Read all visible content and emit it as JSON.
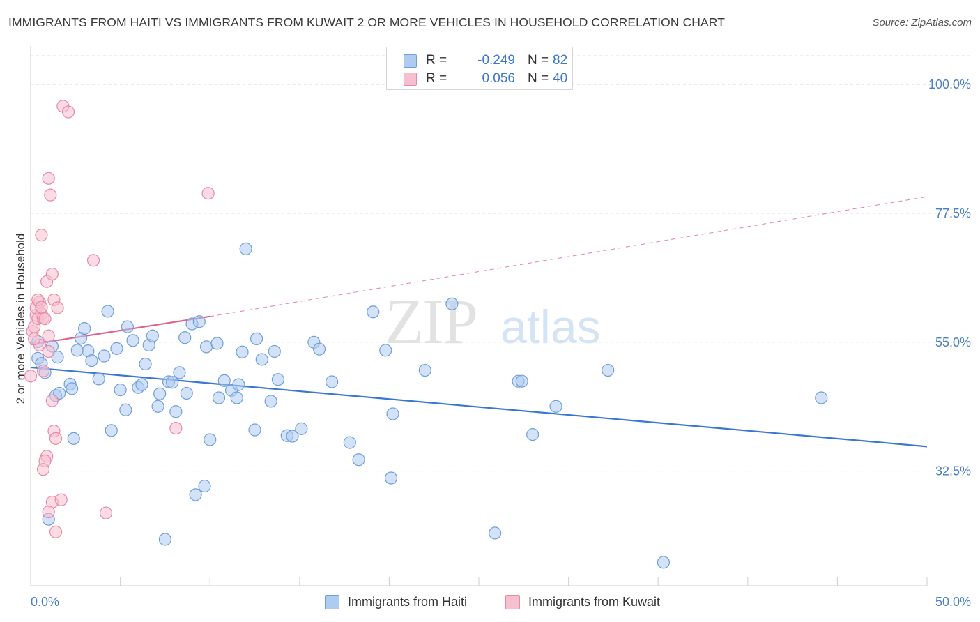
{
  "title": "IMMIGRANTS FROM HAITI VS IMMIGRANTS FROM KUWAIT 2 OR MORE VEHICLES IN HOUSEHOLD CORRELATION CHART",
  "source": "Source: ZipAtlas.com",
  "watermark": {
    "zip": "ZIP",
    "atlas": "atlas"
  },
  "legend": {
    "haiti": {
      "r_label": "R =",
      "r_value": "-0.249",
      "n_label": "N =",
      "n_value": "82"
    },
    "kuwait": {
      "r_label": "R =",
      "r_value": "0.056",
      "n_label": "N =",
      "n_value": "40"
    }
  },
  "colors": {
    "haiti_fill": "#aecbf0",
    "haiti_stroke": "#6e9fdc",
    "haiti_line": "#3a78d0",
    "kuwait_fill": "#f7bfd0",
    "kuwait_stroke": "#e889a8",
    "kuwait_line": "#e0628c",
    "grid": "#dedede",
    "tick_text": "#4a7fc1"
  },
  "chart_data": {
    "type": "scatter",
    "title": "IMMIGRANTS FROM HAITI VS IMMIGRANTS FROM KUWAIT 2 OR MORE VEHICLES IN HOUSEHOLD CORRELATION CHART",
    "xlabel": "",
    "ylabel": "2 or more Vehicles in Household",
    "xlim": [
      0,
      50
    ],
    "ylim": [
      12.5,
      105
    ],
    "x_tick_labels": [
      "0.0%",
      "50.0%"
    ],
    "y_ticks": [
      32.5,
      55.0,
      77.5,
      100.0
    ],
    "y_tick_labels": [
      "32.5%",
      "55.0%",
      "77.5%",
      "100.0%"
    ],
    "grid": true,
    "legend_position": "top-center",
    "series": [
      {
        "name": "Immigrants from Haiti",
        "r": -0.249,
        "n": 82,
        "trend": {
          "x": [
            0,
            50
          ],
          "y": [
            50.6,
            36.8
          ],
          "style": "solid"
        },
        "points": [
          {
            "x": 0.4,
            "y": 52.2
          },
          {
            "x": 0.6,
            "y": 51.3
          },
          {
            "x": 0.8,
            "y": 49.7
          },
          {
            "x": 1.2,
            "y": 54.3
          },
          {
            "x": 1.5,
            "y": 52.4
          },
          {
            "x": 1.4,
            "y": 45.7
          },
          {
            "x": 1.6,
            "y": 46.1
          },
          {
            "x": 2.2,
            "y": 47.7
          },
          {
            "x": 2.4,
            "y": 38.2
          },
          {
            "x": 2.8,
            "y": 55.7
          },
          {
            "x": 3.0,
            "y": 57.4
          },
          {
            "x": 2.6,
            "y": 53.6
          },
          {
            "x": 3.2,
            "y": 53.5
          },
          {
            "x": 3.4,
            "y": 51.8
          },
          {
            "x": 3.8,
            "y": 48.6
          },
          {
            "x": 4.1,
            "y": 52.6
          },
          {
            "x": 4.3,
            "y": 60.4
          },
          {
            "x": 4.5,
            "y": 39.6
          },
          {
            "x": 4.8,
            "y": 53.9
          },
          {
            "x": 5.0,
            "y": 46.7
          },
          {
            "x": 5.3,
            "y": 43.2
          },
          {
            "x": 5.4,
            "y": 57.7
          },
          {
            "x": 5.7,
            "y": 55.3
          },
          {
            "x": 6.0,
            "y": 47.1
          },
          {
            "x": 6.2,
            "y": 47.6
          },
          {
            "x": 6.4,
            "y": 51.2
          },
          {
            "x": 6.6,
            "y": 54.5
          },
          {
            "x": 6.8,
            "y": 56.1
          },
          {
            "x": 7.1,
            "y": 43.8
          },
          {
            "x": 7.2,
            "y": 46.0
          },
          {
            "x": 7.7,
            "y": 48.1
          },
          {
            "x": 7.9,
            "y": 48.0
          },
          {
            "x": 8.1,
            "y": 42.9
          },
          {
            "x": 8.3,
            "y": 49.7
          },
          {
            "x": 8.6,
            "y": 55.8
          },
          {
            "x": 8.7,
            "y": 46.1
          },
          {
            "x": 9.0,
            "y": 58.2
          },
          {
            "x": 9.4,
            "y": 58.6
          },
          {
            "x": 9.2,
            "y": 28.4
          },
          {
            "x": 9.7,
            "y": 29.9
          },
          {
            "x": 9.8,
            "y": 54.2
          },
          {
            "x": 10.0,
            "y": 38.0
          },
          {
            "x": 10.4,
            "y": 54.8
          },
          {
            "x": 10.5,
            "y": 45.3
          },
          {
            "x": 10.8,
            "y": 48.3
          },
          {
            "x": 11.2,
            "y": 46.6
          },
          {
            "x": 11.5,
            "y": 45.3
          },
          {
            "x": 11.6,
            "y": 47.6
          },
          {
            "x": 11.8,
            "y": 53.3
          },
          {
            "x": 12.0,
            "y": 71.3
          },
          {
            "x": 12.5,
            "y": 39.7
          },
          {
            "x": 12.6,
            "y": 55.6
          },
          {
            "x": 12.9,
            "y": 52.0
          },
          {
            "x": 13.4,
            "y": 44.7
          },
          {
            "x": 13.6,
            "y": 53.4
          },
          {
            "x": 13.8,
            "y": 48.5
          },
          {
            "x": 14.3,
            "y": 38.7
          },
          {
            "x": 14.6,
            "y": 38.6
          },
          {
            "x": 15.1,
            "y": 39.9
          },
          {
            "x": 15.8,
            "y": 55.0
          },
          {
            "x": 16.1,
            "y": 53.8
          },
          {
            "x": 16.8,
            "y": 48.1
          },
          {
            "x": 17.8,
            "y": 37.5
          },
          {
            "x": 18.3,
            "y": 34.5
          },
          {
            "x": 19.1,
            "y": 60.3
          },
          {
            "x": 19.8,
            "y": 53.6
          },
          {
            "x": 20.1,
            "y": 31.3
          },
          {
            "x": 20.2,
            "y": 42.5
          },
          {
            "x": 22.0,
            "y": 50.1
          },
          {
            "x": 23.5,
            "y": 61.7
          },
          {
            "x": 25.9,
            "y": 21.7
          },
          {
            "x": 27.2,
            "y": 48.2
          },
          {
            "x": 27.4,
            "y": 48.2
          },
          {
            "x": 28.0,
            "y": 38.9
          },
          {
            "x": 29.3,
            "y": 43.8
          },
          {
            "x": 32.2,
            "y": 50.1
          },
          {
            "x": 35.3,
            "y": 16.6
          },
          {
            "x": 44.1,
            "y": 45.3
          },
          {
            "x": 0.4,
            "y": 55.1
          },
          {
            "x": 2.3,
            "y": 46.9
          },
          {
            "x": 7.5,
            "y": 20.6
          },
          {
            "x": 1.0,
            "y": 24.1
          }
        ]
      },
      {
        "name": "Immigrants from Kuwait",
        "r": 0.056,
        "n": 40,
        "trend": {
          "x": [
            0,
            10
          ],
          "y": [
            54.6,
            59.5
          ],
          "style": "solid",
          "extension": {
            "x": [
              10,
              50
            ],
            "y": [
              59.5,
              80.4
            ],
            "style": "dashed"
          }
        },
        "points": [
          {
            "x": 0.0,
            "y": 49.1
          },
          {
            "x": 0.1,
            "y": 56.9
          },
          {
            "x": 0.2,
            "y": 57.7
          },
          {
            "x": 0.3,
            "y": 59.7
          },
          {
            "x": 0.4,
            "y": 59.1
          },
          {
            "x": 0.3,
            "y": 61.0
          },
          {
            "x": 0.5,
            "y": 62.0
          },
          {
            "x": 0.4,
            "y": 62.4
          },
          {
            "x": 0.6,
            "y": 60.0
          },
          {
            "x": 0.7,
            "y": 59.2
          },
          {
            "x": 0.8,
            "y": 59.1
          },
          {
            "x": 0.6,
            "y": 61.1
          },
          {
            "x": 0.5,
            "y": 54.5
          },
          {
            "x": 0.7,
            "y": 50.0
          },
          {
            "x": 1.0,
            "y": 56.1
          },
          {
            "x": 1.0,
            "y": 53.4
          },
          {
            "x": 0.9,
            "y": 65.6
          },
          {
            "x": 1.2,
            "y": 66.9
          },
          {
            "x": 1.3,
            "y": 62.4
          },
          {
            "x": 1.5,
            "y": 61.0
          },
          {
            "x": 0.6,
            "y": 73.7
          },
          {
            "x": 1.0,
            "y": 83.6
          },
          {
            "x": 1.1,
            "y": 80.7
          },
          {
            "x": 1.2,
            "y": 44.8
          },
          {
            "x": 1.3,
            "y": 39.5
          },
          {
            "x": 1.4,
            "y": 38.2
          },
          {
            "x": 0.9,
            "y": 35.1
          },
          {
            "x": 0.8,
            "y": 34.3
          },
          {
            "x": 0.7,
            "y": 32.8
          },
          {
            "x": 1.2,
            "y": 27.1
          },
          {
            "x": 1.7,
            "y": 27.5
          },
          {
            "x": 1.0,
            "y": 25.4
          },
          {
            "x": 1.4,
            "y": 21.9
          },
          {
            "x": 1.8,
            "y": 96.2
          },
          {
            "x": 2.1,
            "y": 95.2
          },
          {
            "x": 3.5,
            "y": 69.3
          },
          {
            "x": 4.2,
            "y": 25.2
          },
          {
            "x": 8.1,
            "y": 40.0
          },
          {
            "x": 9.9,
            "y": 81.0
          },
          {
            "x": 0.2,
            "y": 55.6
          }
        ]
      }
    ]
  },
  "bottom_legend": [
    "Immigrants from Haiti",
    "Immigrants from Kuwait"
  ]
}
